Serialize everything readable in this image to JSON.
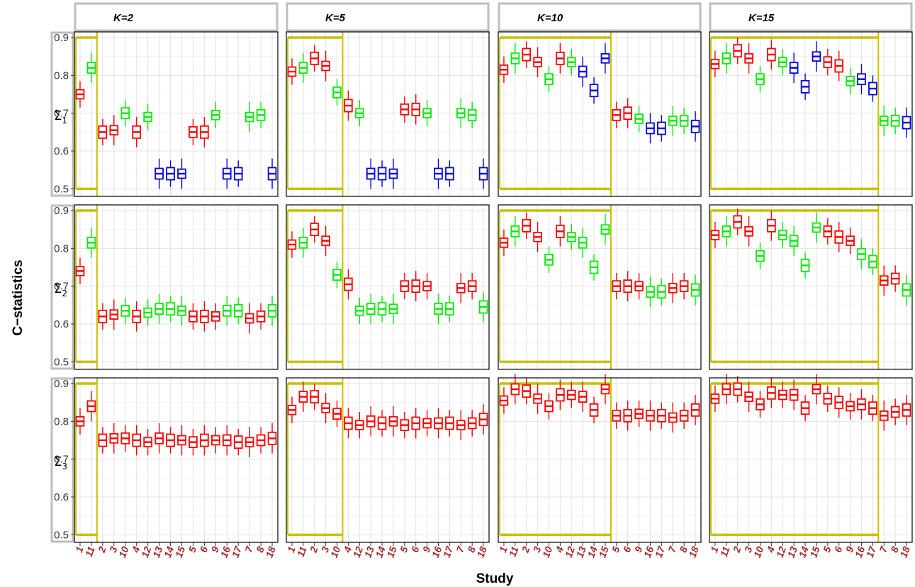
{
  "chart_data": {
    "type": "boxplot",
    "ylabel": "C−statistics",
    "xlabel": "Study",
    "ylim": [
      0.48,
      0.915
    ],
    "yticks": [
      0.5,
      0.6,
      0.7,
      0.8,
      0.9
    ],
    "grid": true,
    "colors": {
      "red": "#ff0000",
      "green": "#00ee00",
      "blue": "#0000dd",
      "highlight": "#c8c000"
    },
    "columns": [
      {
        "label": "K=2",
        "order": [
          "1",
          "11",
          "2",
          "3",
          "10",
          "4",
          "12",
          "13",
          "14",
          "15",
          "5",
          "6",
          "9",
          "16",
          "17",
          "7",
          "8",
          "18"
        ],
        "k": 2
      },
      {
        "label": "K=5",
        "order": [
          "1",
          "11",
          "2",
          "3",
          "10",
          "4",
          "12",
          "13",
          "14",
          "15",
          "5",
          "6",
          "9",
          "16",
          "17",
          "7",
          "8",
          "18"
        ],
        "k": 5
      },
      {
        "label": "K=10",
        "order": [
          "1",
          "11",
          "2",
          "3",
          "10",
          "4",
          "12",
          "13",
          "14",
          "15",
          "5",
          "6",
          "9",
          "16",
          "17",
          "7",
          "8",
          "18"
        ],
        "k": 10
      },
      {
        "label": "K=15",
        "order": [
          "1",
          "11",
          "2",
          "3",
          "10",
          "4",
          "12",
          "13",
          "14",
          "15",
          "5",
          "6",
          "9",
          "16",
          "17",
          "7",
          "8",
          "18"
        ],
        "k": 15
      }
    ],
    "rows": [
      {
        "label": "Σ",
        "sub": "1"
      },
      {
        "label": "Σ",
        "sub": "2"
      },
      {
        "label": "Σ",
        "sub": "3"
      }
    ],
    "panels": [
      [
        {
          "medians": [
            0.75,
            0.82,
            0.65,
            0.655,
            0.7,
            0.65,
            0.69,
            0.54,
            0.54,
            0.54,
            0.65,
            0.65,
            0.695,
            0.54,
            0.54,
            0.69,
            0.695,
            0.54
          ],
          "colors": [
            "red",
            "green",
            "red",
            "red",
            "green",
            "red",
            "green",
            "blue",
            "blue",
            "blue",
            "red",
            "red",
            "green",
            "blue",
            "blue",
            "green",
            "green",
            "blue"
          ]
        },
        {
          "medians": [
            0.81,
            0.82,
            0.845,
            0.825,
            0.755,
            0.72,
            0.7,
            0.54,
            0.54,
            0.54,
            0.71,
            0.71,
            0.7,
            0.54,
            0.54,
            0.7,
            0.695,
            0.54
          ],
          "colors": [
            "red",
            "green",
            "red",
            "red",
            "green",
            "red",
            "green",
            "blue",
            "blue",
            "blue",
            "red",
            "red",
            "green",
            "blue",
            "blue",
            "green",
            "green",
            "blue"
          ]
        },
        {
          "medians": [
            0.815,
            0.845,
            0.855,
            0.835,
            0.79,
            0.845,
            0.835,
            0.81,
            0.76,
            0.845,
            0.695,
            0.7,
            0.685,
            0.66,
            0.66,
            0.68,
            0.68,
            0.665
          ],
          "colors": [
            "red",
            "green",
            "red",
            "red",
            "green",
            "red",
            "green",
            "blue",
            "blue",
            "blue",
            "red",
            "red",
            "green",
            "blue",
            "blue",
            "green",
            "green",
            "blue"
          ]
        },
        {
          "medians": [
            0.83,
            0.845,
            0.865,
            0.845,
            0.79,
            0.855,
            0.835,
            0.82,
            0.77,
            0.85,
            0.835,
            0.825,
            0.785,
            0.79,
            0.765,
            0.68,
            0.68,
            0.675
          ],
          "colors": [
            "red",
            "green",
            "red",
            "red",
            "green",
            "red",
            "green",
            "blue",
            "blue",
            "blue",
            "red",
            "red",
            "green",
            "blue",
            "blue",
            "green",
            "green",
            "blue"
          ]
        }
      ],
      [
        {
          "medians": [
            0.74,
            0.815,
            0.62,
            0.625,
            0.635,
            0.62,
            0.63,
            0.64,
            0.64,
            0.635,
            0.62,
            0.62,
            0.62,
            0.635,
            0.635,
            0.615,
            0.62,
            0.635
          ],
          "colors": [
            "red",
            "green",
            "red",
            "red",
            "green",
            "red",
            "green",
            "green",
            "green",
            "green",
            "red",
            "red",
            "red",
            "green",
            "green",
            "red",
            "red",
            "green"
          ]
        },
        {
          "medians": [
            0.81,
            0.815,
            0.85,
            0.82,
            0.73,
            0.705,
            0.635,
            0.64,
            0.64,
            0.64,
            0.7,
            0.7,
            0.7,
            0.64,
            0.64,
            0.695,
            0.7,
            0.645
          ],
          "colors": [
            "red",
            "green",
            "red",
            "red",
            "green",
            "red",
            "green",
            "green",
            "green",
            "green",
            "red",
            "red",
            "red",
            "green",
            "green",
            "red",
            "red",
            "green"
          ]
        },
        {
          "medians": [
            0.815,
            0.845,
            0.86,
            0.83,
            0.77,
            0.845,
            0.83,
            0.815,
            0.75,
            0.85,
            0.7,
            0.7,
            0.7,
            0.685,
            0.685,
            0.695,
            0.7,
            0.69
          ],
          "colors": [
            "red",
            "green",
            "red",
            "red",
            "green",
            "red",
            "green",
            "green",
            "green",
            "green",
            "red",
            "red",
            "red",
            "green",
            "green",
            "red",
            "red",
            "green"
          ]
        },
        {
          "medians": [
            0.835,
            0.845,
            0.87,
            0.845,
            0.78,
            0.86,
            0.835,
            0.82,
            0.755,
            0.855,
            0.845,
            0.83,
            0.82,
            0.785,
            0.765,
            0.715,
            0.72,
            0.69
          ],
          "colors": [
            "red",
            "green",
            "red",
            "red",
            "green",
            "red",
            "green",
            "green",
            "green",
            "green",
            "red",
            "red",
            "red",
            "green",
            "green",
            "red",
            "red",
            "green"
          ]
        }
      ],
      [
        {
          "medians": [
            0.8,
            0.84,
            0.75,
            0.755,
            0.755,
            0.75,
            0.745,
            0.755,
            0.75,
            0.75,
            0.745,
            0.75,
            0.75,
            0.75,
            0.745,
            0.745,
            0.75,
            0.755
          ],
          "colors": [
            "red",
            "red",
            "red",
            "red",
            "red",
            "red",
            "red",
            "red",
            "red",
            "red",
            "red",
            "red",
            "red",
            "red",
            "red",
            "red",
            "red",
            "red"
          ]
        },
        {
          "medians": [
            0.83,
            0.865,
            0.865,
            0.835,
            0.82,
            0.795,
            0.79,
            0.8,
            0.795,
            0.8,
            0.79,
            0.795,
            0.795,
            0.795,
            0.795,
            0.79,
            0.795,
            0.805
          ],
          "colors": [
            "red",
            "red",
            "red",
            "red",
            "red",
            "red",
            "red",
            "red",
            "red",
            "red",
            "red",
            "red",
            "red",
            "red",
            "red",
            "red",
            "red",
            "red"
          ]
        },
        {
          "medians": [
            0.855,
            0.885,
            0.88,
            0.86,
            0.84,
            0.87,
            0.87,
            0.865,
            0.83,
            0.885,
            0.815,
            0.815,
            0.82,
            0.815,
            0.815,
            0.81,
            0.815,
            0.83
          ],
          "colors": [
            "red",
            "red",
            "red",
            "red",
            "red",
            "red",
            "red",
            "red",
            "red",
            "red",
            "red",
            "red",
            "red",
            "red",
            "red",
            "red",
            "red",
            "red"
          ]
        },
        {
          "medians": [
            0.86,
            0.885,
            0.885,
            0.865,
            0.845,
            0.875,
            0.87,
            0.87,
            0.835,
            0.885,
            0.86,
            0.85,
            0.84,
            0.845,
            0.835,
            0.815,
            0.825,
            0.83
          ],
          "colors": [
            "red",
            "red",
            "red",
            "red",
            "red",
            "red",
            "red",
            "red",
            "red",
            "red",
            "red",
            "red",
            "red",
            "red",
            "red",
            "red",
            "red",
            "red"
          ]
        }
      ]
    ]
  }
}
